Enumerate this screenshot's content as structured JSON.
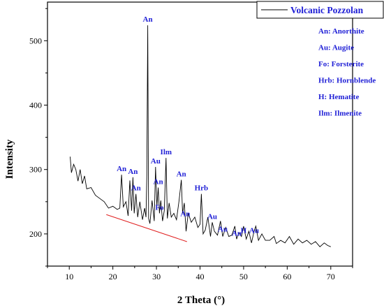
{
  "colors": {
    "axis": "#000000",
    "series": "#000000",
    "annotation": "#1f1fd6",
    "legend_title": "#1f1fd6",
    "baseline": "#e02020"
  },
  "chart_data": {
    "type": "line",
    "title": "",
    "xlabel": "2 Theta (°)",
    "ylabel": "Intensity",
    "xlim": [
      5,
      75
    ],
    "ylim": [
      150,
      560
    ],
    "x_ticks": [
      10,
      20,
      30,
      40,
      50,
      60,
      70
    ],
    "y_ticks": [
      200,
      300,
      400,
      500
    ],
    "grid": false,
    "legend": {
      "placement": "top-right",
      "series_name": "Volcanic Pozzolan",
      "entries": [
        "An: Anorthite",
        "Au: Augite",
        "Fo: Forsterite",
        "Hrb: Hornblende",
        "H: Hematite",
        "Ilm: Ilmenite"
      ]
    },
    "series": [
      {
        "name": "Volcanic Pozzolan",
        "x": [
          10.2,
          10.5,
          11.0,
          11.5,
          12.0,
          12.5,
          13.0,
          13.5,
          14.0,
          15.0,
          16.0,
          17.0,
          18.0,
          19.0,
          20.0,
          21.0,
          21.6,
          22.0,
          22.4,
          23.0,
          23.5,
          23.9,
          24.3,
          24.6,
          24.9,
          25.3,
          25.7,
          26.2,
          26.8,
          27.3,
          27.6,
          27.8,
          28.0,
          28.2,
          28.5,
          29.0,
          29.5,
          29.8,
          30.1,
          30.4,
          30.7,
          31.0,
          31.4,
          31.8,
          32.2,
          32.5,
          32.9,
          33.4,
          34.0,
          34.6,
          35.2,
          35.7,
          36.0,
          36.4,
          36.8,
          37.3,
          38.0,
          38.8,
          39.5,
          40.0,
          40.3,
          40.7,
          41.2,
          41.8,
          42.4,
          42.8,
          43.3,
          44.0,
          44.7,
          45.2,
          45.9,
          46.6,
          47.3,
          48.0,
          48.4,
          48.9,
          49.5,
          50.0,
          50.6,
          51.2,
          51.8,
          52.4,
          52.8,
          53.4,
          54.2,
          55.0,
          56.0,
          57.0,
          57.5,
          58.5,
          59.5,
          60.5,
          61.5,
          62.5,
          63.5,
          64.5,
          65.5,
          66.5,
          67.5,
          68.5,
          69.3,
          70.0
        ],
        "y": [
          320,
          295,
          308,
          300,
          282,
          300,
          278,
          290,
          270,
          272,
          260,
          255,
          250,
          240,
          243,
          238,
          240,
          292,
          242,
          250,
          228,
          283,
          236,
          288,
          232,
          262,
          226,
          250,
          222,
          240,
          226,
          292,
          524,
          224,
          216,
          252,
          220,
          304,
          242,
          272,
          232,
          252,
          220,
          236,
          318,
          224,
          248,
          226,
          232,
          222,
          252,
          284,
          232,
          248,
          204,
          232,
          218,
          226,
          210,
          215,
          262,
          200,
          206,
          226,
          196,
          218,
          204,
          198,
          220,
          196,
          210,
          196,
          198,
          212,
          192,
          202,
          196,
          212,
          192,
          204,
          186,
          204,
          212,
          190,
          200,
          190,
          190,
          196,
          185,
          190,
          186,
          196,
          184,
          192,
          186,
          190,
          184,
          188,
          180,
          186,
          182,
          180
        ]
      }
    ],
    "annotations": [
      {
        "label": "An",
        "x": 28.0,
        "y": 524
      },
      {
        "label": "An",
        "x": 22.0,
        "y": 292
      },
      {
        "label": "An",
        "x": 24.6,
        "y": 288
      },
      {
        "label": "An",
        "x": 25.3,
        "y": 262
      },
      {
        "label": "Au",
        "x": 29.8,
        "y": 304
      },
      {
        "label": "An",
        "x": 30.4,
        "y": 272
      },
      {
        "label": "Fo",
        "x": 30.7,
        "y": 232
      },
      {
        "label": "Ilm",
        "x": 32.2,
        "y": 318
      },
      {
        "label": "An",
        "x": 35.7,
        "y": 284
      },
      {
        "label": "An",
        "x": 36.6,
        "y": 222
      },
      {
        "label": "Hrb",
        "x": 40.3,
        "y": 262
      },
      {
        "label": "Au",
        "x": 42.8,
        "y": 218
      },
      {
        "label": "Au",
        "x": 45.2,
        "y": 198
      },
      {
        "label": "An",
        "x": 48.4,
        "y": 192
      },
      {
        "label": "H",
        "x": 50.0,
        "y": 196
      },
      {
        "label": "Au",
        "x": 52.4,
        "y": 196
      }
    ],
    "baseline": {
      "x": [
        18.5,
        37.0
      ],
      "y": [
        230,
        188
      ]
    }
  }
}
